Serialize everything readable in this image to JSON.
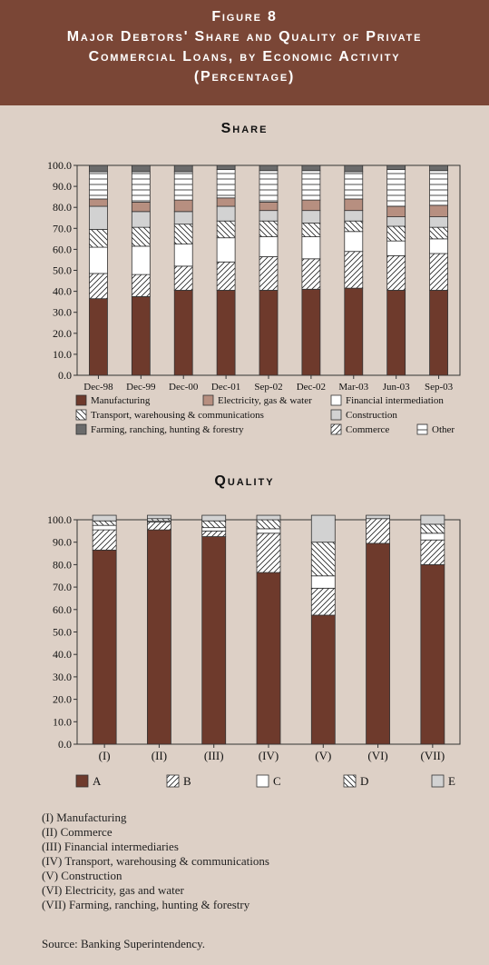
{
  "header": {
    "line1": "Figure 8",
    "line2": "Major Debtors' Share and Quality of Private",
    "line3": "Commercial Loans, by Economic Activity",
    "line4": "(Percentage)"
  },
  "colors": {
    "manufacturing": "#6e3a2c",
    "electricity": "#b78f80",
    "financial": "#ffffff",
    "transport": "hatch-back",
    "construction": "#d2d2d2",
    "farming": "#6b6b6b",
    "commerce": "hatch-forward",
    "other": "hatch-horizontal",
    "A": "#6e3a2c",
    "B": "hatch-forward",
    "C": "#ffffff",
    "D": "hatch-back",
    "E": "#d2d2d2"
  },
  "chart_data": [
    {
      "type": "bar",
      "stacked": true,
      "title": "Share",
      "categories": [
        "Dec-98",
        "Dec-99",
        "Dec-00",
        "Dec-01",
        "Sep-02",
        "Dec-02",
        "Mar-03",
        "Jun-03",
        "Sep-03"
      ],
      "yticks": [
        "0.0",
        "10.0",
        "20.0",
        "30.0",
        "40.0",
        "50.0",
        "60.0",
        "70.0",
        "80.0",
        "90.0",
        "100.0"
      ],
      "ylim": [
        0,
        100
      ],
      "series": [
        {
          "name": "Manufacturing",
          "key": "manufacturing",
          "values": [
            36.5,
            37.5,
            40.5,
            40.5,
            40.5,
            41,
            41.5,
            40.5,
            40.5
          ]
        },
        {
          "name": "Commerce",
          "key": "commerce",
          "values": [
            12,
            10.5,
            11.5,
            13.5,
            16,
            14.5,
            17.5,
            16.5,
            17.5
          ]
        },
        {
          "name": "Financial intermediation",
          "key": "financial",
          "values": [
            12.5,
            13.5,
            10.5,
            11.5,
            9.5,
            10.5,
            9.5,
            7,
            7
          ]
        },
        {
          "name": "Transport, warehousing & communications",
          "key": "transport",
          "values": [
            8.5,
            9,
            9.5,
            8,
            7.5,
            6.5,
            5,
            7,
            5.5
          ]
        },
        {
          "name": "Construction",
          "key": "construction",
          "values": [
            11,
            7.5,
            6,
            7,
            5,
            6,
            5,
            4.5,
            5
          ]
        },
        {
          "name": "Electricity, gas & water",
          "key": "electricity",
          "values": [
            3.5,
            4.5,
            5.5,
            4,
            4,
            5,
            5.5,
            5,
            5.5
          ]
        },
        {
          "name": "Other",
          "key": "other",
          "values": [
            13,
            14.5,
            13.5,
            13.5,
            15,
            14,
            13,
            17.5,
            16.5
          ]
        },
        {
          "name": "Farming, ranching, hunting & forestry",
          "key": "farming",
          "values": [
            3,
            3,
            3,
            2,
            2.5,
            2.5,
            3,
            2,
            2.5
          ]
        }
      ],
      "legend": [
        {
          "name": "Manufacturing",
          "key": "manufacturing"
        },
        {
          "name": "Electricity, gas & water",
          "key": "electricity"
        },
        {
          "name": "Financial intermediation",
          "key": "financial"
        },
        {
          "name": "Transport, warehousing & communications",
          "key": "transport"
        },
        {
          "name": "Construction",
          "key": "construction"
        },
        {
          "name": "Farming, ranching, hunting & forestry",
          "key": "farming"
        },
        {
          "name": "Commerce",
          "key": "commerce"
        },
        {
          "name": "Other",
          "key": "other"
        }
      ]
    },
    {
      "type": "bar",
      "stacked": true,
      "title": "Quality",
      "categories": [
        "(I)",
        "(II)",
        "(III)",
        "(IV)",
        "(V)",
        "(VI)",
        "(VII)"
      ],
      "yticks": [
        "0.0",
        "10.0",
        "20.0",
        "30.0",
        "40.0",
        "50.0",
        "60.0",
        "70.0",
        "80.0",
        "90.0",
        "100.0"
      ],
      "ylim": [
        0,
        100
      ],
      "series": [
        {
          "name": "A",
          "key": "A",
          "values": [
            86.5,
            95.5,
            92.5,
            76.5,
            57.5,
            89.5,
            80
          ]
        },
        {
          "name": "B",
          "key": "B",
          "values": [
            9,
            3.5,
            2.5,
            17.5,
            12,
            11,
            11
          ]
        },
        {
          "name": "C",
          "key": "C",
          "values": [
            2,
            0.5,
            1.5,
            2,
            5.5,
            0,
            3
          ]
        },
        {
          "name": "D",
          "key": "D",
          "values": [
            2,
            1,
            3,
            4,
            15,
            0,
            4
          ]
        },
        {
          "name": "E",
          "key": "E",
          "values": [
            2.5,
            1.5,
            2.5,
            2,
            12,
            1.5,
            4
          ]
        }
      ],
      "legend": [
        {
          "name": "A",
          "key": "A"
        },
        {
          "name": "B",
          "key": "B"
        },
        {
          "name": "C",
          "key": "C"
        },
        {
          "name": "D",
          "key": "D"
        },
        {
          "name": "E",
          "key": "E"
        }
      ]
    }
  ],
  "notes": [
    "(I) Manufacturing",
    "(II) Commerce",
    "(III) Financial intermediaries",
    "(IV) Transport, warehousing & communications",
    "(V) Construction",
    "(VI) Electricity, gas and water",
    "(VII) Farming, ranching, hunting & forestry"
  ],
  "source": "Source: Banking Superintendency."
}
